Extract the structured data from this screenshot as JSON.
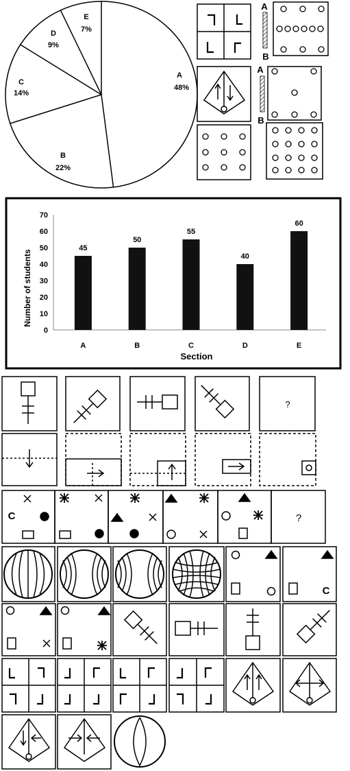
{
  "pie_chart": {
    "type": "pie",
    "slices": [
      {
        "label": "A",
        "value": 48,
        "text": "48%"
      },
      {
        "label": "B",
        "value": 22,
        "text": "22%"
      },
      {
        "label": "C",
        "value": 14,
        "text": "14%"
      },
      {
        "label": "D",
        "value": 9,
        "text": "9%"
      },
      {
        "label": "E",
        "value": 7,
        "text": "7%"
      }
    ]
  },
  "chart_data": {
    "type": "bar",
    "categories": [
      "A",
      "B",
      "C",
      "D",
      "E"
    ],
    "values": [
      45,
      50,
      55,
      40,
      60
    ],
    "value_labels": [
      "45",
      "50",
      "55",
      "40",
      "60"
    ],
    "xlabel": "Section",
    "ylabel": "Number of students",
    "ylim": [
      0,
      70
    ],
    "yticks": [
      "0",
      "10",
      "20",
      "30",
      "40",
      "50",
      "60",
      "70"
    ],
    "grid": false,
    "bar_color": "#111111"
  },
  "mirror_labels": {
    "top": "A",
    "bottom": "B",
    "top2": "A",
    "bottom2": "B"
  },
  "series_question_mark": "?",
  "pattern_question_mark": "?",
  "option_letter": "C",
  "corner_letter": "C"
}
